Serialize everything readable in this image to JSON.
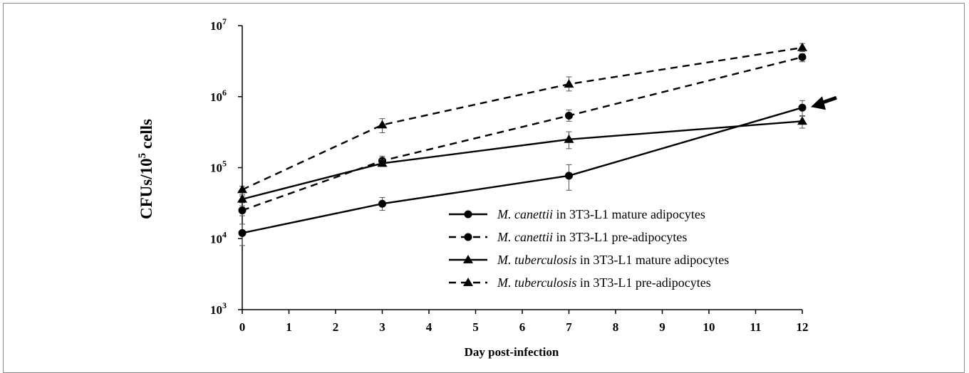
{
  "chart_data": {
    "type": "line",
    "xlabel": "Day post-infection",
    "ylabel": "CFUs/10^5 cells",
    "ylabel_parts": [
      "CFUs/10",
      "5",
      " cells"
    ],
    "xlim": [
      0,
      12
    ],
    "ylim": [
      1000,
      10000000
    ],
    "yscale": "log",
    "x_ticks": [
      0,
      1,
      2,
      3,
      4,
      5,
      6,
      7,
      8,
      9,
      10,
      11,
      12
    ],
    "y_ticks": [
      {
        "value": 1000,
        "base": "10",
        "exp": "3"
      },
      {
        "value": 10000,
        "base": "10",
        "exp": "4"
      },
      {
        "value": 100000,
        "base": "10",
        "exp": "5"
      },
      {
        "value": 1000000,
        "base": "10",
        "exp": "6"
      },
      {
        "value": 10000000,
        "base": "10",
        "exp": "7"
      }
    ],
    "legend_position": "lower-right",
    "series": [
      {
        "species": "M. canettii",
        "suffix": " in 3T3-L1 mature adipocytes",
        "marker": "circle",
        "dashed": false,
        "x": [
          0,
          3,
          7,
          12
        ],
        "y": [
          12000,
          31000,
          77000,
          700000
        ],
        "err": [
          [
            8000,
            16000
          ],
          [
            25000,
            38000
          ],
          [
            48000,
            110000
          ],
          [
            530000,
            880000
          ]
        ]
      },
      {
        "species": "M. canettii",
        "suffix": " in 3T3-L1 pre-adipocytes",
        "marker": "circle",
        "dashed": true,
        "x": [
          0,
          3,
          7,
          12
        ],
        "y": [
          25000,
          125000,
          540000,
          3600000
        ],
        "err": [
          [
            21000,
            29000
          ],
          [
            110000,
            145000
          ],
          [
            450000,
            650000
          ],
          [
            3100000,
            4000000
          ]
        ]
      },
      {
        "species": "M. tuberculosis",
        "suffix": " in 3T3-L1 mature adipocytes",
        "marker": "triangle",
        "dashed": false,
        "x": [
          0,
          3,
          7,
          12
        ],
        "y": [
          36000,
          115000,
          250000,
          450000
        ],
        "err": [
          [
            32000,
            40000
          ],
          [
            105000,
            130000
          ],
          [
            185000,
            320000
          ],
          [
            360000,
            540000
          ]
        ]
      },
      {
        "species": "M. tuberculosis",
        "suffix": " in 3T3-L1 pre-adipocytes",
        "marker": "triangle",
        "dashed": true,
        "x": [
          0,
          3,
          7,
          12
        ],
        "y": [
          49000,
          400000,
          1500000,
          4900000
        ],
        "err": [
          [
            42000,
            55000
          ],
          [
            310000,
            490000
          ],
          [
            1200000,
            1900000
          ],
          [
            4300000,
            5600000
          ]
        ]
      }
    ],
    "annotation": {
      "type": "arrow",
      "target_series": 0,
      "target_x": 12
    },
    "color": "#000000"
  }
}
